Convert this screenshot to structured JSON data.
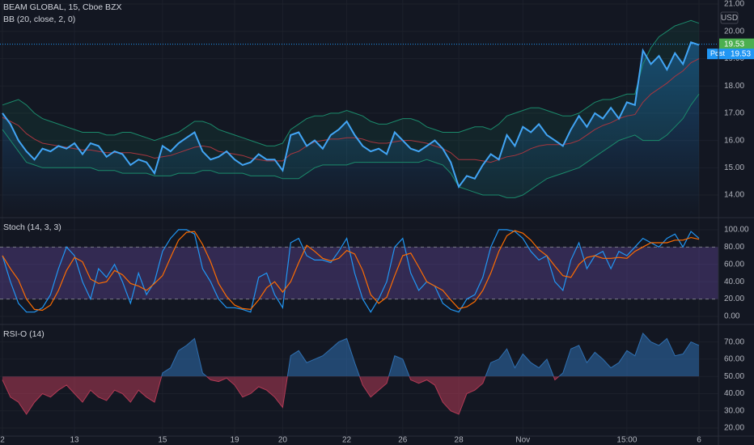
{
  "chart_data": [
    {
      "type": "bollinger",
      "title": "BEAM GLOBAL, 15, Cboe BZX",
      "subtitle": "BB (20, close, 2, 0)",
      "currency": "USD",
      "ylim": [
        13.2,
        21.15
      ],
      "yticks": [
        {
          "value": 14,
          "label": "14.00"
        },
        {
          "value": 15,
          "label": "15.00"
        },
        {
          "value": 16,
          "label": "16.00"
        },
        {
          "value": 17,
          "label": "17.00"
        },
        {
          "value": 18,
          "label": "18.00"
        },
        {
          "value": 19,
          "label": "19.00"
        },
        {
          "value": 20,
          "label": "20.00"
        },
        {
          "value": 21,
          "label": "21.00"
        }
      ],
      "last_value": 19.53,
      "last_color": "#4caf50",
      "post_label": "Post",
      "post_value": 19.53,
      "post_color": "#2196f3",
      "series": [
        {
          "color": "#42a5f5",
          "values": [
            17.0,
            16.6,
            16.0,
            15.6,
            15.3,
            15.7,
            15.6,
            15.8,
            15.7,
            15.9,
            15.5,
            15.9,
            15.8,
            15.4,
            15.6,
            15.5,
            15.1,
            15.3,
            15.2,
            14.8,
            15.8,
            15.6,
            15.9,
            16.1,
            16.3,
            15.6,
            15.3,
            15.4,
            15.6,
            15.3,
            15.1,
            15.2,
            15.5,
            15.3,
            15.3,
            14.9,
            16.2,
            16.3,
            15.8,
            16.0,
            15.7,
            16.2,
            16.4,
            16.7,
            16.2,
            15.8,
            15.6,
            15.7,
            15.5,
            16.3,
            16.0,
            15.7,
            15.6,
            15.8,
            16.0,
            15.7,
            15.2,
            14.3,
            14.7,
            14.6,
            15.1,
            15.5,
            15.3,
            16.2,
            15.8,
            16.5,
            16.3,
            16.6,
            16.2,
            16.0,
            15.8,
            16.4,
            16.9,
            16.5,
            17.0,
            16.8,
            17.2,
            16.8,
            17.4,
            17.3,
            19.3,
            18.8,
            19.1,
            18.6,
            19.2,
            18.8,
            19.6,
            19.5
          ]
        },
        {
          "color": "#1b8a6b",
          "values": [
            17.3,
            17.4,
            17.5,
            17.3,
            17.0,
            16.8,
            16.7,
            16.6,
            16.5,
            16.4,
            16.3,
            16.3,
            16.3,
            16.2,
            16.2,
            16.3,
            16.3,
            16.2,
            16.1,
            16.0,
            16.1,
            16.2,
            16.3,
            16.5,
            16.7,
            16.7,
            16.6,
            16.4,
            16.3,
            16.2,
            16.1,
            16.0,
            15.9,
            15.8,
            15.8,
            15.9,
            16.4,
            16.6,
            16.8,
            16.9,
            16.9,
            17.0,
            17.0,
            17.1,
            17.0,
            16.9,
            16.7,
            16.6,
            16.6,
            16.7,
            16.8,
            16.8,
            16.7,
            16.5,
            16.4,
            16.3,
            16.3,
            16.3,
            16.4,
            16.5,
            16.5,
            16.4,
            16.6,
            16.9,
            17.0,
            17.1,
            17.2,
            17.2,
            17.1,
            17.0,
            16.9,
            16.9,
            17.0,
            17.2,
            17.4,
            17.5,
            17.5,
            17.6,
            17.7,
            17.7,
            18.8,
            19.4,
            19.8,
            20.0,
            20.2,
            20.3,
            20.4,
            20.3
          ]
        },
        {
          "color": "#a8363f",
          "values": [
            16.85,
            16.7,
            16.55,
            16.25,
            16.05,
            15.9,
            15.85,
            15.8,
            15.75,
            15.7,
            15.65,
            15.65,
            15.6,
            15.55,
            15.55,
            15.55,
            15.55,
            15.5,
            15.45,
            15.35,
            15.4,
            15.45,
            15.55,
            15.65,
            15.75,
            15.8,
            15.75,
            15.6,
            15.55,
            15.5,
            15.45,
            15.35,
            15.3,
            15.25,
            15.25,
            15.25,
            15.5,
            15.6,
            15.8,
            15.95,
            16.0,
            16.05,
            16.05,
            16.1,
            16.1,
            16.05,
            15.95,
            15.9,
            15.9,
            15.95,
            16.0,
            16.0,
            15.95,
            15.9,
            15.8,
            15.7,
            15.55,
            15.3,
            15.3,
            15.3,
            15.25,
            15.2,
            15.3,
            15.4,
            15.45,
            15.55,
            15.7,
            15.8,
            15.85,
            15.85,
            15.85,
            15.9,
            16.0,
            16.2,
            16.4,
            16.55,
            16.65,
            16.8,
            16.9,
            16.95,
            17.4,
            17.7,
            17.9,
            18.1,
            18.35,
            18.55,
            18.85,
            19.0
          ]
        },
        {
          "color": "#1b8a6b",
          "values": [
            16.4,
            16.0,
            15.6,
            15.2,
            15.1,
            15.0,
            15.0,
            15.0,
            15.0,
            15.0,
            15.0,
            15.0,
            14.9,
            14.9,
            14.9,
            14.8,
            14.8,
            14.8,
            14.8,
            14.7,
            14.7,
            14.7,
            14.8,
            14.8,
            14.8,
            14.9,
            14.9,
            14.8,
            14.8,
            14.8,
            14.8,
            14.7,
            14.7,
            14.7,
            14.7,
            14.6,
            14.6,
            14.6,
            14.8,
            15.0,
            15.1,
            15.1,
            15.1,
            15.1,
            15.2,
            15.2,
            15.2,
            15.2,
            15.2,
            15.2,
            15.2,
            15.2,
            15.2,
            15.3,
            15.2,
            15.1,
            14.8,
            14.3,
            14.2,
            14.1,
            14.0,
            14.0,
            14.0,
            13.9,
            13.9,
            14.0,
            14.2,
            14.4,
            14.6,
            14.7,
            14.8,
            14.9,
            15.0,
            15.2,
            15.4,
            15.6,
            15.8,
            16.0,
            16.1,
            16.2,
            16.0,
            16.0,
            16.0,
            16.2,
            16.5,
            16.8,
            17.3,
            17.7
          ]
        }
      ]
    },
    {
      "type": "stochastic",
      "title": "Stoch (14, 3, 3)",
      "ylim": [
        -8.4,
        113
      ],
      "yticks": [
        {
          "value": 0,
          "label": "0.00"
        },
        {
          "value": 20,
          "label": "20.00"
        },
        {
          "value": 40,
          "label": "40.00"
        },
        {
          "value": 60,
          "label": "60.00"
        },
        {
          "value": 80,
          "label": "80.00"
        },
        {
          "value": 100,
          "label": "100.00"
        }
      ],
      "bands": [
        20,
        80
      ],
      "band_color": "#7e57c2",
      "series": [
        {
          "color": "#2196f3",
          "values": [
            70,
            40,
            15,
            5,
            5,
            10,
            25,
            55,
            80,
            70,
            40,
            20,
            55,
            45,
            60,
            40,
            15,
            50,
            25,
            40,
            75,
            90,
            100,
            100,
            95,
            55,
            40,
            20,
            10,
            10,
            8,
            5,
            45,
            50,
            25,
            10,
            85,
            90,
            70,
            65,
            65,
            62,
            75,
            90,
            50,
            20,
            5,
            20,
            40,
            80,
            90,
            50,
            30,
            40,
            35,
            15,
            8,
            5,
            20,
            25,
            45,
            80,
            100,
            100,
            98,
            90,
            75,
            65,
            70,
            40,
            30,
            65,
            85,
            55,
            70,
            75,
            55,
            75,
            70,
            80,
            90,
            85,
            80,
            90,
            95,
            80,
            98,
            90
          ]
        },
        {
          "color": "#ff6d00",
          "values": [
            70,
            55,
            42,
            20,
            8,
            7,
            13,
            30,
            53,
            68,
            63,
            43,
            38,
            40,
            53,
            48,
            38,
            35,
            30,
            38,
            47,
            68,
            88,
            97,
            98,
            83,
            63,
            38,
            23,
            13,
            9,
            8,
            19,
            33,
            40,
            28,
            40,
            62,
            82,
            75,
            67,
            64,
            67,
            76,
            72,
            53,
            25,
            15,
            22,
            47,
            70,
            73,
            57,
            40,
            35,
            30,
            19,
            9,
            11,
            17,
            30,
            50,
            75,
            93,
            99,
            96,
            88,
            77,
            70,
            58,
            47,
            45,
            60,
            68,
            70,
            67,
            67,
            68,
            67,
            75,
            80,
            85,
            85,
            85,
            88,
            88,
            91,
            89
          ]
        }
      ]
    },
    {
      "type": "oscillator",
      "title": "RSI-O (14)",
      "ylim": [
        15.8,
        79.7
      ],
      "yticks": [
        {
          "value": 20,
          "label": "20.00"
        },
        {
          "value": 30,
          "label": "30.00"
        },
        {
          "value": 40,
          "label": "40.00"
        },
        {
          "value": 50,
          "label": "50.00"
        },
        {
          "value": 60,
          "label": "60.00"
        },
        {
          "value": 70,
          "label": "70.00"
        }
      ],
      "baseline": 50,
      "color_above": "#2f6fb0",
      "color_below": "#b23a55",
      "categories": [
        "2",
        null,
        null,
        null,
        null,
        null,
        null,
        null,
        null,
        "13",
        null,
        null,
        null,
        null,
        null,
        null,
        null,
        null,
        null,
        null,
        "15",
        null,
        null,
        null,
        null,
        null,
        null,
        null,
        null,
        "19",
        null,
        null,
        null,
        null,
        null,
        "20",
        null,
        null,
        null,
        null,
        null,
        null,
        null,
        "22",
        null,
        null,
        null,
        null,
        null,
        null,
        "26",
        null,
        null,
        null,
        null,
        null,
        null,
        "28",
        null,
        null,
        null,
        null,
        null,
        null,
        null,
        "Nov",
        null,
        null,
        null,
        null,
        null,
        null,
        null,
        null,
        null,
        null,
        null,
        null,
        "15:00",
        null,
        null,
        null,
        null,
        null,
        null,
        null,
        null,
        "6"
      ],
      "values": [
        48,
        38,
        35,
        28,
        35,
        40,
        38,
        42,
        45,
        40,
        35,
        42,
        38,
        36,
        42,
        40,
        35,
        42,
        38,
        35,
        52,
        55,
        65,
        68,
        72,
        52,
        48,
        47,
        49,
        45,
        38,
        40,
        44,
        42,
        38,
        32,
        62,
        65,
        58,
        60,
        62,
        66,
        70,
        72,
        58,
        45,
        38,
        42,
        46,
        62,
        60,
        48,
        46,
        48,
        45,
        35,
        30,
        28,
        40,
        42,
        46,
        58,
        60,
        66,
        55,
        63,
        58,
        55,
        60,
        48,
        52,
        66,
        68,
        58,
        64,
        60,
        55,
        58,
        65,
        62,
        75,
        70,
        68,
        72,
        62,
        63,
        70,
        68
      ]
    }
  ]
}
